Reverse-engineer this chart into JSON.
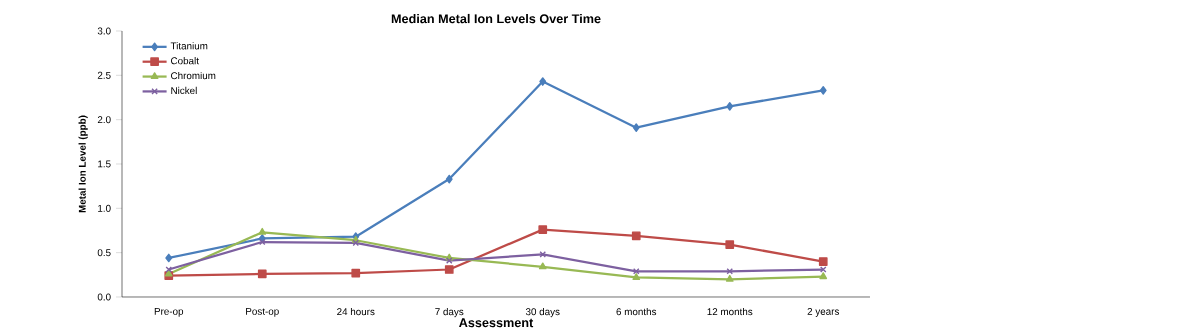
{
  "chart_data": {
    "type": "line",
    "title": "Median Metal Ion Levels Over Time",
    "xlabel": "Assessment",
    "ylabel": "Metal Ion Level (ppb)",
    "categories": [
      "Pre-op",
      "Post-op",
      "24 hours",
      "7 days",
      "30 days",
      "6 months",
      "12 months",
      "2 years"
    ],
    "series": [
      {
        "name": "Titanium",
        "color": "#4a7ebb",
        "marker": "diamond",
        "values": [
          0.44,
          0.66,
          0.68,
          1.33,
          2.43,
          1.91,
          2.15,
          2.33
        ]
      },
      {
        "name": "Cobalt",
        "color": "#be4b48",
        "marker": "square",
        "values": [
          0.24,
          0.26,
          0.27,
          0.31,
          0.76,
          0.69,
          0.59,
          0.4
        ]
      },
      {
        "name": "Chromium",
        "color": "#98b954",
        "marker": "triangle",
        "values": [
          0.26,
          0.73,
          0.64,
          0.44,
          0.34,
          0.22,
          0.2,
          0.23
        ]
      },
      {
        "name": "Nickel",
        "color": "#7d60a0",
        "marker": "cross",
        "values": [
          0.31,
          0.62,
          0.61,
          0.41,
          0.48,
          0.29,
          0.29,
          0.31
        ]
      }
    ],
    "ylim": [
      0,
      3
    ],
    "yticks": [
      {
        "value": 0,
        "label": "0.0"
      },
      {
        "value": 0.5,
        "label": "0.5"
      },
      {
        "value": 1,
        "label": "1.0"
      },
      {
        "value": 1.5,
        "label": "1.5"
      },
      {
        "value": 2,
        "label": "2.0"
      },
      {
        "value": 2.5,
        "label": "2.5"
      },
      {
        "value": 3,
        "label": "3.0"
      }
    ],
    "grid": false,
    "legend": "top left",
    "line_style": "solid"
  }
}
